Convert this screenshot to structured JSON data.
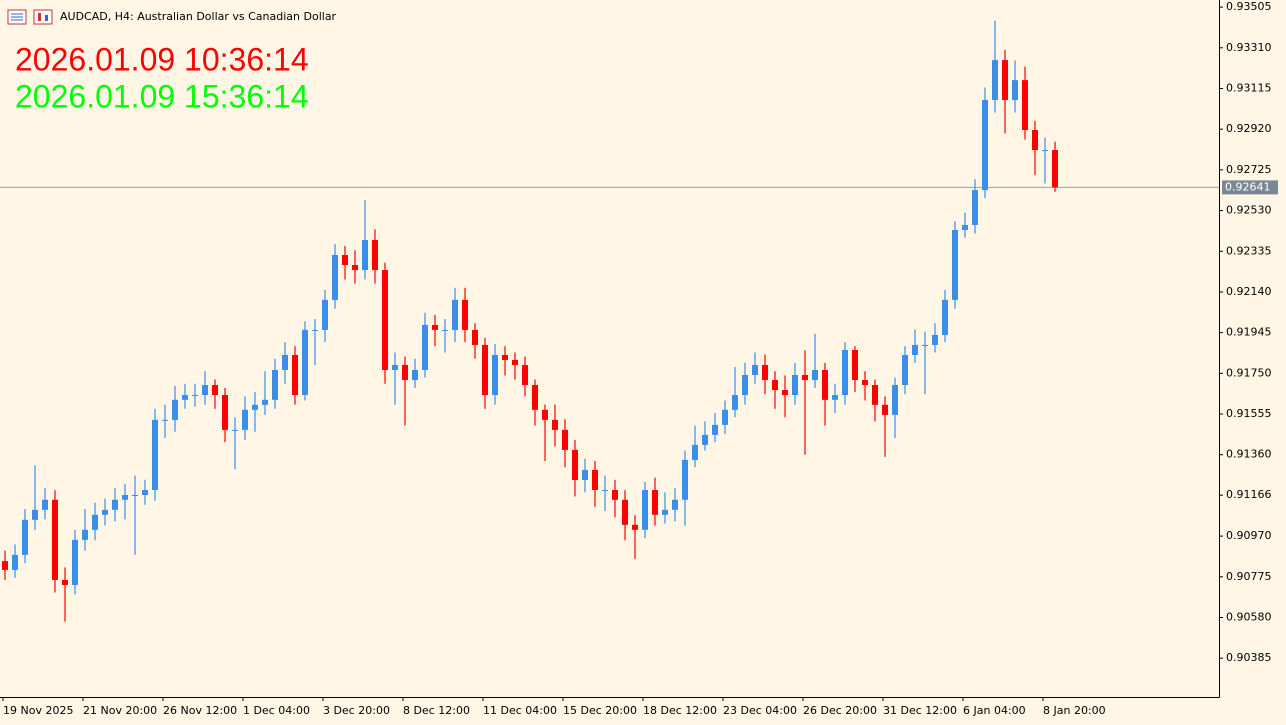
{
  "chart_data": {
    "type": "candlestick",
    "title": "AUDCAD, H4:  Australian Dollar vs Canadian Dollar",
    "annotations": [
      {
        "text": "2026.01.09 10:36:14",
        "color": "#ff0000"
      },
      {
        "text": "2026.01.09 15:36:14",
        "color": "#00ff00"
      }
    ],
    "up_color": "#3a8ee8",
    "down_color": "#ff0000",
    "current_price": 0.92641,
    "ylim": [
      0.90199,
      0.93539
    ],
    "yticks": [
      0.93505,
      {
        "value": 0.9331,
        "label": "0.93310"
      },
      0.93115,
      {
        "value": 0.9292,
        "label": "0.92920"
      },
      0.92725,
      {
        "value": 0.9253,
        "label": "0.92530"
      },
      0.92335,
      {
        "value": 0.9214,
        "label": "0.92140"
      },
      0.91945,
      {
        "value": 0.9175,
        "label": "0.91750"
      },
      0.91555,
      {
        "value": 0.9136,
        "label": "0.91360"
      },
      0.91166,
      {
        "value": 0.9097,
        "label": "0.90970"
      },
      0.90775,
      {
        "value": 0.9058,
        "label": "0.90580"
      },
      0.90385
    ],
    "categories": [
      "19 Nov 2025",
      null,
      null,
      null,
      null,
      null,
      null,
      null,
      "21 Nov 20:00",
      null,
      null,
      null,
      null,
      null,
      null,
      null,
      "26 Nov 12:00",
      null,
      null,
      null,
      null,
      null,
      null,
      null,
      "1 Dec 04:00",
      null,
      null,
      null,
      null,
      null,
      null,
      null,
      "3 Dec 20:00",
      null,
      null,
      null,
      null,
      null,
      null,
      null,
      "8 Dec 12:00",
      null,
      null,
      null,
      null,
      null,
      null,
      null,
      "11 Dec 04:00",
      null,
      null,
      null,
      null,
      null,
      null,
      null,
      "15 Dec 20:00",
      null,
      null,
      null,
      null,
      null,
      null,
      null,
      "18 Dec 12:00",
      null,
      null,
      null,
      null,
      null,
      null,
      null,
      "23 Dec 04:00",
      null,
      null,
      null,
      null,
      null,
      null,
      null,
      "26 Dec 20:00",
      null,
      null,
      null,
      null,
      null,
      null,
      null,
      "31 Dec 12:00",
      null,
      null,
      null,
      null,
      null,
      null,
      null,
      "6 Jan 04:00",
      null,
      null,
      null,
      null,
      null,
      null,
      null,
      "8 Jan 20:00",
      null
    ],
    "ohlc": [
      [
        0.9085,
        0.909,
        0.9076,
        0.90808
      ],
      [
        0.90808,
        0.9093,
        0.9077,
        0.9088
      ],
      [
        0.9088,
        0.911,
        0.9084,
        0.91048
      ],
      [
        0.91048,
        0.9131,
        0.91,
        0.91096
      ],
      [
        0.91096,
        0.912,
        0.9105,
        0.91144
      ],
      [
        0.91144,
        0.9119,
        0.907,
        0.9076
      ],
      [
        0.9076,
        0.9082,
        0.9056,
        0.90736
      ],
      [
        0.90736,
        0.91,
        0.9069,
        0.90952
      ],
      [
        0.90952,
        0.911,
        0.909,
        0.91
      ],
      [
        0.91,
        0.9113,
        0.9095,
        0.91072
      ],
      [
        0.91072,
        0.9115,
        0.9102,
        0.91096
      ],
      [
        0.91096,
        0.912,
        0.9104,
        0.91144
      ],
      [
        0.91144,
        0.9122,
        0.9105,
        0.91167
      ],
      [
        0.91167,
        0.9126,
        0.9088,
        0.91167
      ],
      [
        0.91167,
        0.9124,
        0.9112,
        0.91191
      ],
      [
        0.91191,
        0.9158,
        0.9114,
        0.91527
      ],
      [
        0.91527,
        0.916,
        0.9144,
        0.91527
      ],
      [
        0.91527,
        0.9169,
        0.9147,
        0.91623
      ],
      [
        0.91623,
        0.917,
        0.9158,
        0.91646
      ],
      [
        0.91646,
        0.917,
        0.9159,
        0.91646
      ],
      [
        0.91646,
        0.9176,
        0.916,
        0.91694
      ],
      [
        0.91694,
        0.9172,
        0.9158,
        0.91646
      ],
      [
        0.91646,
        0.9168,
        0.9142,
        0.91479
      ],
      [
        0.91479,
        0.9154,
        0.9129,
        0.91479
      ],
      [
        0.91479,
        0.9164,
        0.9143,
        0.91575
      ],
      [
        0.91575,
        0.9166,
        0.9147,
        0.91599
      ],
      [
        0.91599,
        0.9176,
        0.9155,
        0.91623
      ],
      [
        0.91623,
        0.9182,
        0.9158,
        0.91766
      ],
      [
        0.91766,
        0.919,
        0.917,
        0.91838
      ],
      [
        0.91838,
        0.9188,
        0.916,
        0.91646
      ],
      [
        0.91646,
        0.92,
        0.9162,
        0.91958
      ],
      [
        0.91958,
        0.9201,
        0.9179,
        0.91958
      ],
      [
        0.91958,
        0.9215,
        0.919,
        0.92102
      ],
      [
        0.92102,
        0.9237,
        0.9206,
        0.92317
      ],
      [
        0.92317,
        0.9236,
        0.922,
        0.92269
      ],
      [
        0.92269,
        0.9234,
        0.9218,
        0.92245
      ],
      [
        0.92245,
        0.9258,
        0.922,
        0.92389
      ],
      [
        0.92389,
        0.9244,
        0.9218,
        0.92245
      ],
      [
        0.92245,
        0.9228,
        0.917,
        0.91766
      ],
      [
        0.91766,
        0.9185,
        0.916,
        0.9179
      ],
      [
        0.9179,
        0.9183,
        0.915,
        0.91718
      ],
      [
        0.91718,
        0.9182,
        0.9168,
        0.91766
      ],
      [
        0.91766,
        0.9204,
        0.9173,
        0.91982
      ],
      [
        0.91982,
        0.9203,
        0.9188,
        0.91958
      ],
      [
        0.91958,
        0.9201,
        0.9185,
        0.91958
      ],
      [
        0.91958,
        0.9216,
        0.919,
        0.92102
      ],
      [
        0.92102,
        0.9216,
        0.919,
        0.91958
      ],
      [
        0.91958,
        0.9199,
        0.9182,
        0.91886
      ],
      [
        0.91886,
        0.9192,
        0.9158,
        0.91646
      ],
      [
        0.91646,
        0.9189,
        0.916,
        0.91838
      ],
      [
        0.91838,
        0.9188,
        0.9174,
        0.91814
      ],
      [
        0.91814,
        0.9185,
        0.9172,
        0.9179
      ],
      [
        0.9179,
        0.9183,
        0.9164,
        0.91694
      ],
      [
        0.91694,
        0.9172,
        0.915,
        0.91575
      ],
      [
        0.91575,
        0.916,
        0.9133,
        0.91527
      ],
      [
        0.91527,
        0.916,
        0.914,
        0.91479
      ],
      [
        0.91479,
        0.9153,
        0.913,
        0.91383
      ],
      [
        0.91383,
        0.9143,
        0.9116,
        0.91239
      ],
      [
        0.91239,
        0.9134,
        0.9118,
        0.91287
      ],
      [
        0.91287,
        0.9133,
        0.9111,
        0.91191
      ],
      [
        0.91191,
        0.9126,
        0.9109,
        0.91191
      ],
      [
        0.91191,
        0.9124,
        0.9106,
        0.91144
      ],
      [
        0.91144,
        0.9119,
        0.9095,
        0.91024
      ],
      [
        0.91024,
        0.9107,
        0.9086,
        0.91
      ],
      [
        0.91,
        0.9123,
        0.9096,
        0.91191
      ],
      [
        0.91191,
        0.9125,
        0.9102,
        0.91072
      ],
      [
        0.91072,
        0.9118,
        0.9103,
        0.91096
      ],
      [
        0.91096,
        0.912,
        0.9104,
        0.91144
      ],
      [
        0.91144,
        0.9138,
        0.9102,
        0.91335
      ],
      [
        0.91335,
        0.915,
        0.913,
        0.91407
      ],
      [
        0.91407,
        0.9152,
        0.9138,
        0.91455
      ],
      [
        0.91455,
        0.9156,
        0.9142,
        0.91503
      ],
      [
        0.91503,
        0.9162,
        0.9146,
        0.91575
      ],
      [
        0.91575,
        0.9178,
        0.9154,
        0.91646
      ],
      [
        0.91646,
        0.918,
        0.916,
        0.91742
      ],
      [
        0.91742,
        0.9185,
        0.917,
        0.9179
      ],
      [
        0.9179,
        0.9184,
        0.9165,
        0.91718
      ],
      [
        0.91718,
        0.9176,
        0.9158,
        0.9167
      ],
      [
        0.9167,
        0.9174,
        0.9154,
        0.91646
      ],
      [
        0.91646,
        0.918,
        0.916,
        0.91742
      ],
      [
        0.91742,
        0.9186,
        0.9136,
        0.91718
      ],
      [
        0.91718,
        0.9194,
        0.9168,
        0.91766
      ],
      [
        0.91766,
        0.918,
        0.915,
        0.91623
      ],
      [
        0.91623,
        0.917,
        0.9156,
        0.91646
      ],
      [
        0.91646,
        0.919,
        0.916,
        0.91862
      ],
      [
        0.91862,
        0.9188,
        0.9166,
        0.91718
      ],
      [
        0.91718,
        0.9176,
        0.9162,
        0.91694
      ],
      [
        0.91694,
        0.9172,
        0.9152,
        0.91599
      ],
      [
        0.91599,
        0.9164,
        0.9135,
        0.91551
      ],
      [
        0.91551,
        0.9173,
        0.9144,
        0.91694
      ],
      [
        0.91694,
        0.9188,
        0.9165,
        0.91838
      ],
      [
        0.91838,
        0.9196,
        0.918,
        0.91886
      ],
      [
        0.91886,
        0.9195,
        0.9165,
        0.91886
      ],
      [
        0.91886,
        0.9199,
        0.9185,
        0.91934
      ],
      [
        0.91934,
        0.9215,
        0.919,
        0.92102
      ],
      [
        0.92102,
        0.9248,
        0.9206,
        0.92437
      ],
      [
        0.92437,
        0.9252,
        0.924,
        0.92461
      ],
      [
        0.92461,
        0.9268,
        0.9242,
        0.92628
      ],
      [
        0.92628,
        0.9312,
        0.9259,
        0.9306
      ],
      [
        0.9306,
        0.9344,
        0.93,
        0.93251
      ],
      [
        0.93251,
        0.933,
        0.929,
        0.9306
      ],
      [
        0.9306,
        0.9325,
        0.93,
        0.93155
      ],
      [
        0.93155,
        0.9322,
        0.9287,
        0.92916
      ],
      [
        0.92916,
        0.9296,
        0.927,
        0.9282
      ],
      [
        0.9282,
        0.9288,
        0.9266,
        0.9282
      ],
      [
        0.9282,
        0.9286,
        0.9262,
        0.92641
      ]
    ]
  }
}
